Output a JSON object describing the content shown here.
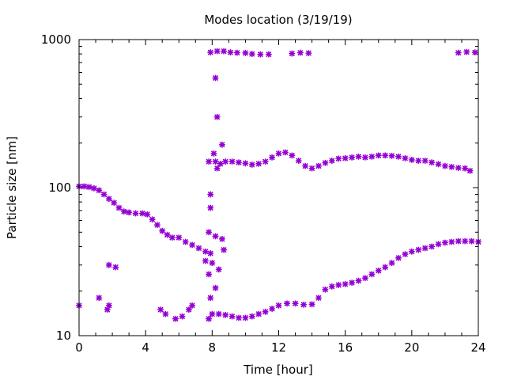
{
  "chart_data": {
    "type": "scatter",
    "title": "Modes location (3/19/19)",
    "xlabel": "Time [hour]",
    "ylabel": "Particle size [nm]",
    "xlim": [
      0,
      24
    ],
    "ylim": [
      10,
      1000
    ],
    "yscale": "log",
    "grid": false,
    "legend": "none",
    "marker": "asterisk",
    "color": "#9400d3",
    "x_ticks": [
      "0",
      "4",
      "8",
      "12",
      "16",
      "20",
      "24"
    ],
    "y_ticks": [
      "10",
      "100",
      "1000"
    ],
    "series": [
      {
        "points": [
          [
            0.0,
            102
          ],
          [
            0.3,
            102
          ],
          [
            0.6,
            101
          ],
          [
            0.9,
            99
          ],
          [
            1.2,
            96
          ],
          [
            1.5,
            90
          ],
          [
            1.8,
            84
          ],
          [
            2.1,
            79
          ],
          [
            2.4,
            73
          ],
          [
            2.7,
            69
          ],
          [
            3.0,
            68
          ],
          [
            3.4,
            67
          ],
          [
            3.8,
            67
          ],
          [
            4.1,
            66
          ],
          [
            4.4,
            61
          ],
          [
            4.7,
            56
          ],
          [
            5.0,
            51
          ],
          [
            5.3,
            48
          ],
          [
            5.6,
            46
          ],
          [
            6.0,
            46
          ],
          [
            6.4,
            43
          ],
          [
            6.8,
            41
          ],
          [
            7.2,
            39
          ],
          [
            7.6,
            37
          ],
          [
            7.9,
            36
          ],
          [
            8.2,
            150
          ],
          [
            8.5,
            145
          ],
          [
            8.8,
            150
          ],
          [
            9.2,
            150
          ],
          [
            9.6,
            148
          ],
          [
            10.0,
            146
          ],
          [
            10.4,
            143
          ],
          [
            10.8,
            145
          ],
          [
            11.2,
            150
          ],
          [
            11.6,
            160
          ],
          [
            12.0,
            170
          ],
          [
            12.4,
            173
          ],
          [
            12.8,
            165
          ],
          [
            13.2,
            152
          ],
          [
            13.6,
            140
          ],
          [
            14.0,
            135
          ],
          [
            14.4,
            140
          ],
          [
            14.8,
            147
          ],
          [
            15.2,
            152
          ],
          [
            15.6,
            157
          ],
          [
            16.0,
            158
          ],
          [
            16.4,
            160
          ],
          [
            16.8,
            162
          ],
          [
            17.2,
            160
          ],
          [
            17.6,
            162
          ],
          [
            18.0,
            165
          ],
          [
            18.4,
            165
          ],
          [
            18.8,
            164
          ],
          [
            19.2,
            162
          ],
          [
            19.6,
            158
          ],
          [
            20.0,
            154
          ],
          [
            20.4,
            152
          ],
          [
            20.8,
            152
          ],
          [
            21.2,
            148
          ],
          [
            21.6,
            144
          ],
          [
            22.0,
            140
          ],
          [
            22.4,
            138
          ],
          [
            22.8,
            136
          ],
          [
            23.2,
            135
          ],
          [
            23.5,
            130
          ],
          [
            7.9,
            820
          ],
          [
            8.3,
            835
          ],
          [
            8.7,
            835
          ],
          [
            9.1,
            820
          ],
          [
            9.5,
            815
          ],
          [
            10.0,
            812
          ],
          [
            10.4,
            800
          ],
          [
            10.9,
            795
          ],
          [
            11.4,
            795
          ],
          [
            12.8,
            805
          ],
          [
            13.3,
            815
          ],
          [
            13.8,
            810
          ],
          [
            22.8,
            815
          ],
          [
            23.3,
            825
          ],
          [
            23.8,
            820
          ],
          [
            8.2,
            550
          ],
          [
            8.3,
            300
          ],
          [
            8.6,
            195
          ],
          [
            8.1,
            170
          ],
          [
            7.8,
            150
          ],
          [
            8.3,
            135
          ],
          [
            7.9,
            90
          ],
          [
            7.9,
            73
          ],
          [
            7.8,
            50
          ],
          [
            8.2,
            47
          ],
          [
            8.6,
            45
          ],
          [
            8.7,
            38
          ],
          [
            7.6,
            32
          ],
          [
            8.0,
            31
          ],
          [
            8.4,
            28
          ],
          [
            7.8,
            26
          ],
          [
            8.2,
            21
          ],
          [
            7.9,
            18
          ],
          [
            8.0,
            14
          ],
          [
            8.4,
            14
          ],
          [
            7.8,
            13
          ],
          [
            0.0,
            16
          ],
          [
            1.2,
            18
          ],
          [
            1.7,
            15
          ],
          [
            1.8,
            16
          ],
          [
            1.8,
            30
          ],
          [
            2.2,
            29
          ],
          [
            4.9,
            15
          ],
          [
            5.2,
            14
          ],
          [
            5.8,
            13
          ],
          [
            6.2,
            13.5
          ],
          [
            6.6,
            15
          ],
          [
            6.8,
            16
          ],
          [
            8.8,
            13.8
          ],
          [
            9.2,
            13.5
          ],
          [
            9.6,
            13.2
          ],
          [
            10.0,
            13.2
          ],
          [
            10.4,
            13.5
          ],
          [
            10.8,
            14
          ],
          [
            11.2,
            14.5
          ],
          [
            11.6,
            15.2
          ],
          [
            12.0,
            16
          ],
          [
            12.5,
            16.5
          ],
          [
            13.0,
            16.5
          ],
          [
            13.5,
            16.2
          ],
          [
            14.0,
            16.3
          ],
          [
            14.4,
            18
          ],
          [
            14.8,
            20.5
          ],
          [
            15.2,
            21.5
          ],
          [
            15.6,
            22
          ],
          [
            16.0,
            22.3
          ],
          [
            16.4,
            22.8
          ],
          [
            16.8,
            23.5
          ],
          [
            17.2,
            24.5
          ],
          [
            17.6,
            26
          ],
          [
            18.0,
            27.5
          ],
          [
            18.4,
            29
          ],
          [
            18.8,
            31
          ],
          [
            19.2,
            33.5
          ],
          [
            19.6,
            35.5
          ],
          [
            20.0,
            37
          ],
          [
            20.4,
            38
          ],
          [
            20.8,
            39
          ],
          [
            21.2,
            40
          ],
          [
            21.6,
            41.5
          ],
          [
            22.0,
            42.5
          ],
          [
            22.4,
            43
          ],
          [
            22.8,
            43.5
          ],
          [
            23.2,
            43.5
          ],
          [
            23.6,
            43.5
          ],
          [
            24.0,
            43
          ]
        ]
      }
    ]
  }
}
